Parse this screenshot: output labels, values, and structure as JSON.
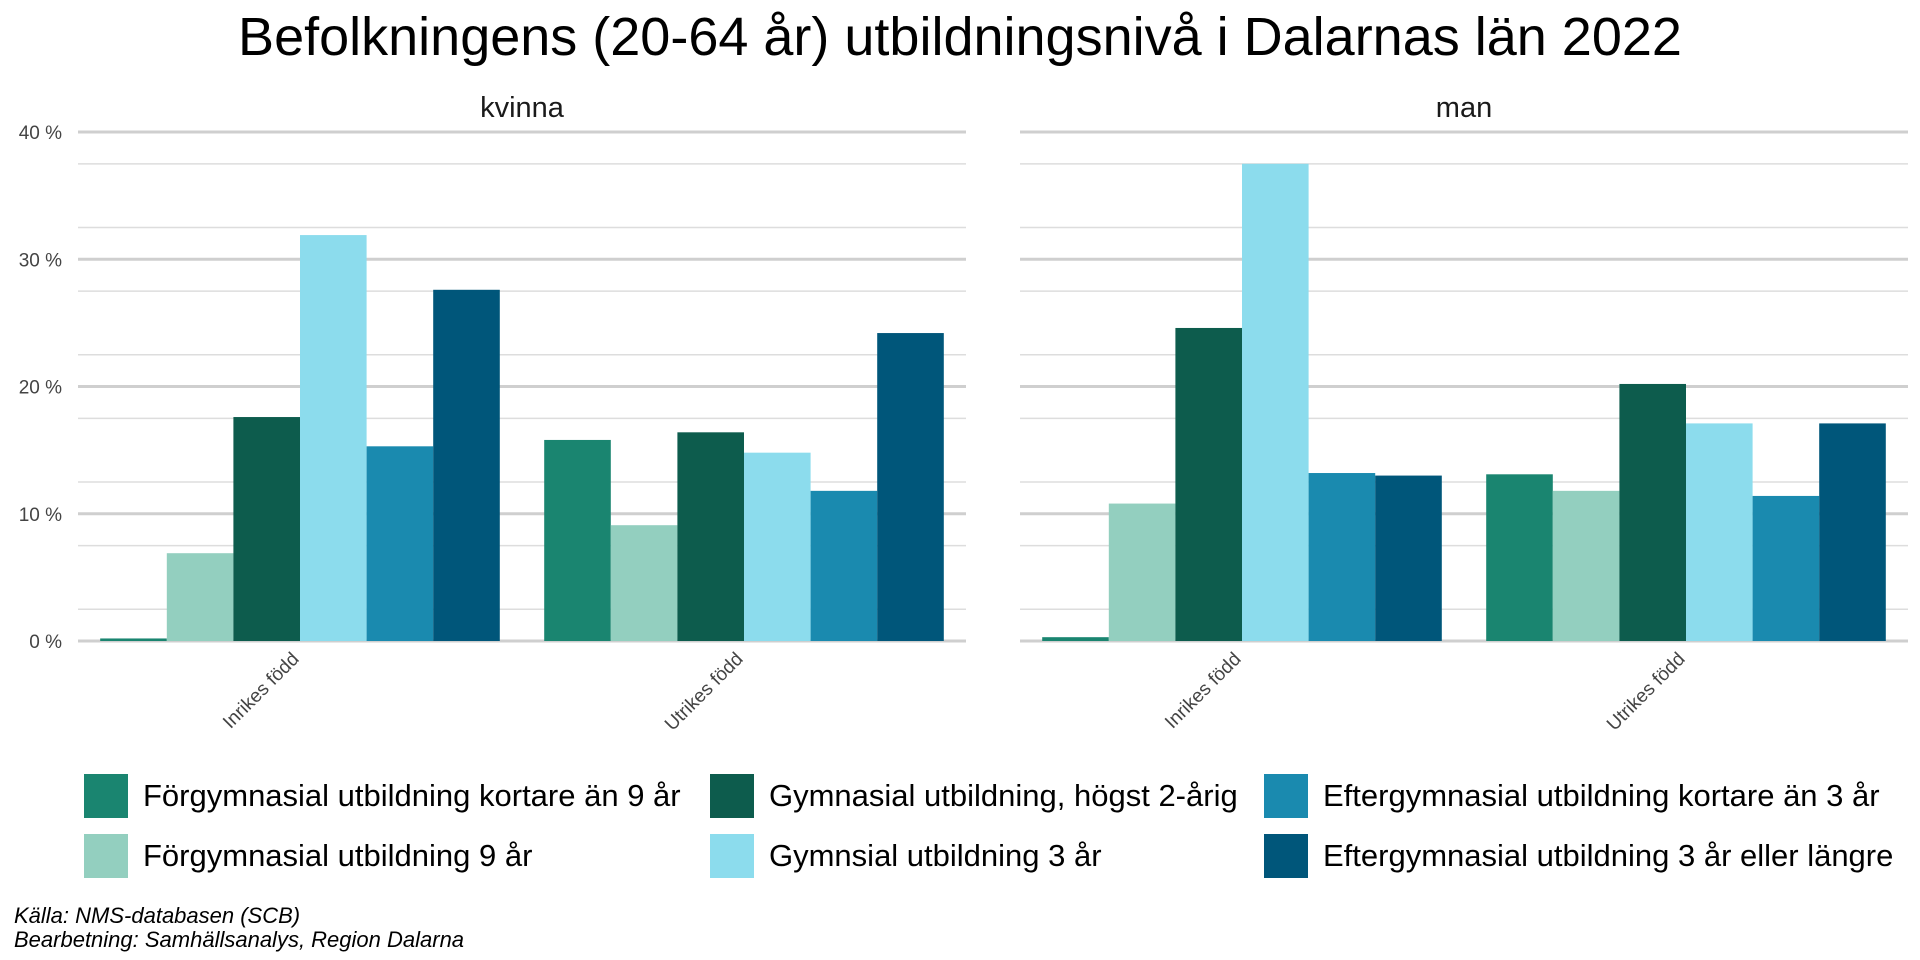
{
  "chart_data": {
    "type": "bar",
    "title": "Befolkningens (20-64 år) utbildningsnivå i Dalarnas län 2022",
    "xlabel": "",
    "ylabel": "",
    "ylim": [
      0,
      40
    ],
    "yticks": [
      0,
      10,
      20,
      30,
      40
    ],
    "ytick_labels": [
      "0 %",
      "10 %",
      "20 %",
      "30 %",
      "40 %"
    ],
    "grid": true,
    "legend_position": "bottom",
    "categories": [
      "Inrikes född",
      "Utrikes född"
    ],
    "facets": [
      {
        "name": "kvinna",
        "series": [
          {
            "name": "Förgymnasial utbildning kortare än 9 år",
            "values": [
              0.2,
              15.8
            ]
          },
          {
            "name": "Förgymnasial utbildning 9 år",
            "values": [
              6.9,
              9.1
            ]
          },
          {
            "name": "Gymnasial utbildning, högst 2-årig",
            "values": [
              17.6,
              16.4
            ]
          },
          {
            "name": "Gymnsial utbildning 3 år",
            "values": [
              31.9,
              14.8
            ]
          },
          {
            "name": "Eftergymnasial utbildning kortare än 3 år",
            "values": [
              15.3,
              11.8
            ]
          },
          {
            "name": "Eftergymnasial utbildning 3 år eller längre",
            "values": [
              27.6,
              24.2
            ]
          }
        ]
      },
      {
        "name": "man",
        "series": [
          {
            "name": "Förgymnasial utbildning kortare än 9 år",
            "values": [
              0.3,
              13.1
            ]
          },
          {
            "name": "Förgymnasial utbildning 9 år",
            "values": [
              10.8,
              11.8
            ]
          },
          {
            "name": "Gymnasial utbildning, högst 2-årig",
            "values": [
              24.6,
              20.2
            ]
          },
          {
            "name": "Gymnsial utbildning 3 år",
            "values": [
              37.5,
              17.1
            ]
          },
          {
            "name": "Eftergymnasial utbildning kortare än 3 år",
            "values": [
              13.2,
              11.4
            ]
          },
          {
            "name": "Eftergymnasial utbildning 3 år eller längre",
            "values": [
              13.0,
              17.1
            ]
          }
        ]
      }
    ],
    "colors": [
      "#1a8570",
      "#93cfbf",
      "#0d5c4d",
      "#8cdced",
      "#1a8aaf",
      "#00567a"
    ]
  },
  "legend": {
    "items": [
      {
        "label": "Förgymnasial utbildning kortare än 9 år",
        "color": "#1a8570"
      },
      {
        "label": "Förgymnasial utbildning 9 år",
        "color": "#93cfbf"
      },
      {
        "label": "Gymnasial utbildning, högst 2-årig",
        "color": "#0d5c4d"
      },
      {
        "label": "Gymnsial utbildning 3 år",
        "color": "#8cdced"
      },
      {
        "label": "Eftergymnasial utbildning kortare än 3 år",
        "color": "#1a8aaf"
      },
      {
        "label": "Eftergymnasial utbildning 3 år eller längre",
        "color": "#00567a"
      }
    ]
  },
  "caption": {
    "source": "Källa: NMS-databasen (SCB)",
    "processing": "Bearbetning: Samhällsanalys, Region Dalarna"
  }
}
